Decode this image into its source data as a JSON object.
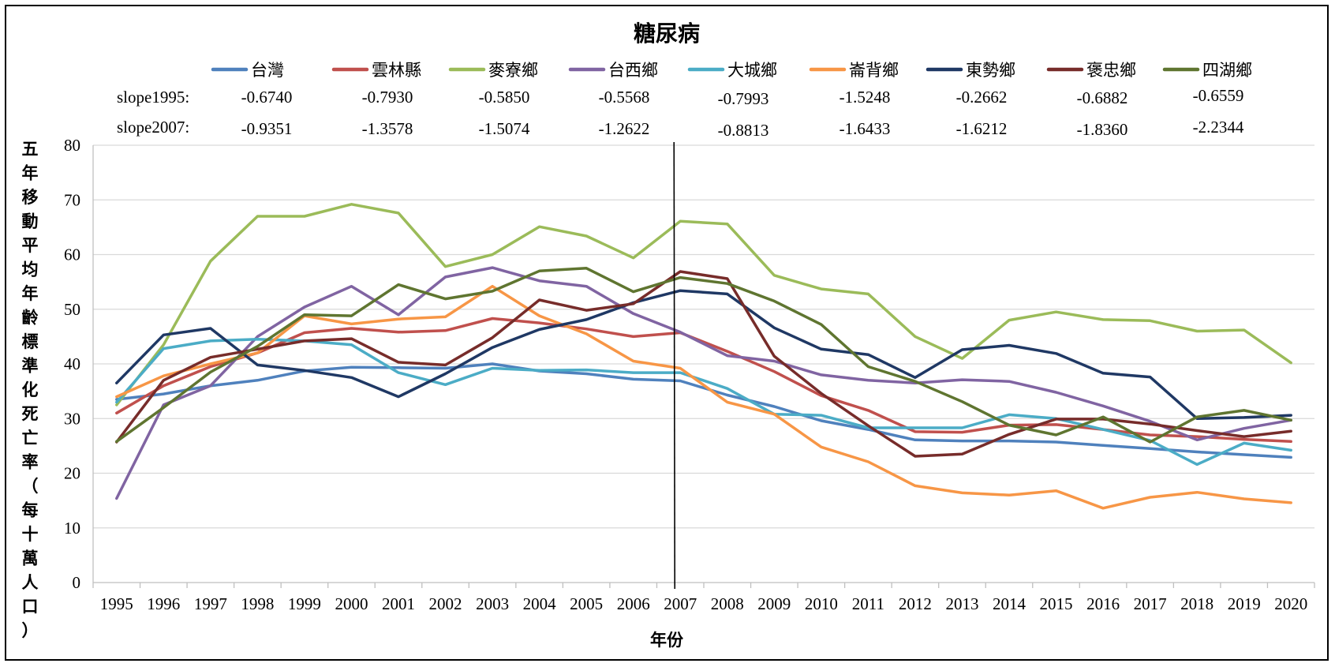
{
  "chart_data": {
    "type": "line",
    "title": "糖尿病",
    "xlabel": "年份",
    "ylabel": "五年移動平均年齡標準化死亡率（每十萬人口）",
    "ylim": [
      0,
      80
    ],
    "yticks": [
      0,
      10,
      20,
      30,
      40,
      50,
      60,
      70,
      80
    ],
    "grid": true,
    "legend_position": "top",
    "vertical_marker_year": "2007",
    "slope_row_labels": [
      "slope1995:",
      "slope2007:"
    ],
    "x": [
      "1995",
      "1996",
      "1997",
      "1998",
      "1999",
      "2000",
      "2001",
      "2002",
      "2003",
      "2004",
      "2005",
      "2006",
      "2007",
      "2008",
      "2009",
      "2010",
      "2011",
      "2012",
      "2013",
      "2014",
      "2015",
      "2016",
      "2017",
      "2018",
      "2019",
      "2020"
    ],
    "series": [
      {
        "name": "台灣",
        "color": "#4F81BD",
        "slope1995": "-0.6740",
        "slope2007": "-0.9351",
        "values": [
          33.5,
          34.5,
          36,
          37,
          38.7,
          39.4,
          39.3,
          39.2,
          40,
          38.7,
          38.2,
          37.2,
          36.9,
          34.3,
          32.2,
          29.6,
          28,
          26.1,
          25.9,
          25.9,
          25.7,
          25.1,
          24.5,
          23.9,
          23.4,
          22.9
        ]
      },
      {
        "name": "雲林縣",
        "color": "#C0504D",
        "slope1995": "-0.7930",
        "slope2007": "-1.3578",
        "values": [
          31,
          36,
          39.5,
          42,
          45.7,
          46.5,
          45.8,
          46.1,
          48.3,
          47.5,
          46.4,
          45,
          45.7,
          42.3,
          38.6,
          34.2,
          31.5,
          27.6,
          27.5,
          28.8,
          28.9,
          28,
          27,
          26.7,
          26.2,
          25.8
        ]
      },
      {
        "name": "麥寮鄉",
        "color": "#9BBB59",
        "slope1995": "-0.5850",
        "slope2007": "-1.5074",
        "values": [
          32.5,
          43.5,
          58.8,
          67,
          67,
          69.2,
          67.6,
          57.8,
          60,
          65.1,
          63.4,
          59.4,
          66.1,
          65.6,
          56.2,
          53.7,
          52.8,
          45,
          41,
          48,
          49.5,
          48.1,
          47.9,
          46,
          46.2,
          40.2
        ]
      },
      {
        "name": "台西鄉",
        "color": "#8064A2",
        "slope1995": "-0.5568",
        "slope2007": "-1.2622",
        "values": [
          15.4,
          32.5,
          36,
          45,
          50.4,
          54.2,
          49,
          55.9,
          57.6,
          55.2,
          54.2,
          49.2,
          45.8,
          41.5,
          40.5,
          38,
          37,
          36.5,
          37.1,
          36.8,
          34.8,
          32.3,
          29.5,
          26.1,
          28.2,
          29.7
        ]
      },
      {
        "name": "大城鄉",
        "color": "#4BACC6",
        "slope1995": "-0.7993",
        "slope2007": "-0.8813",
        "values": [
          33,
          42.8,
          44.2,
          44.5,
          44.2,
          43.5,
          38.4,
          36.2,
          39.2,
          38.8,
          38.9,
          38.4,
          38.4,
          35.5,
          30.8,
          30.6,
          28.3,
          28.3,
          28.3,
          30.7,
          30,
          28,
          26,
          21.6,
          25.5,
          24.2
        ]
      },
      {
        "name": "崙背鄉",
        "color": "#F79646",
        "slope1995": "-1.5248",
        "slope2007": "-1.6433",
        "values": [
          34,
          37.8,
          40,
          42,
          48.8,
          47.3,
          48.2,
          48.6,
          54.2,
          48.8,
          45.5,
          40.5,
          39.2,
          33,
          30.8,
          24.8,
          22.1,
          17.7,
          16.4,
          16,
          16.8,
          13.6,
          15.6,
          16.5,
          15.3,
          14.6
        ]
      },
      {
        "name": "東勢鄉",
        "color": "#1F3864",
        "slope1995": "-0.2662",
        "slope2007": "-1.6212",
        "values": [
          36.5,
          45.3,
          46.5,
          39.8,
          38.8,
          37.5,
          34,
          38.2,
          43,
          46.3,
          48.1,
          51.2,
          53.4,
          52.8,
          46.6,
          42.7,
          41.7,
          37.5,
          42.6,
          43.4,
          41.9,
          38.3,
          37.6,
          30,
          30.2,
          30.6
        ]
      },
      {
        "name": "褒忠鄉",
        "color": "#772C2A",
        "slope1995": "-0.6882",
        "slope2007": "-1.8360",
        "values": [
          25.7,
          37,
          41.2,
          42.7,
          44.2,
          44.6,
          40.3,
          39.8,
          44.8,
          51.7,
          49.8,
          51,
          56.9,
          55.6,
          41.4,
          34.6,
          28.7,
          23.1,
          23.5,
          27.1,
          29.9,
          29.9,
          29,
          27.8,
          26.7,
          27.7
        ]
      },
      {
        "name": "四湖鄉",
        "color": "#5F7530",
        "slope1995": "-0.6559",
        "slope2007": "-2.2344",
        "values": [
          25.8,
          32,
          38.5,
          43.2,
          49,
          48.8,
          54.5,
          51.9,
          53.3,
          57,
          57.5,
          53.2,
          55.8,
          54.7,
          51.5,
          47.2,
          39.5,
          36.8,
          33.1,
          28.8,
          27,
          30.3,
          25.7,
          30.3,
          31.5,
          29.7
        ]
      }
    ]
  }
}
